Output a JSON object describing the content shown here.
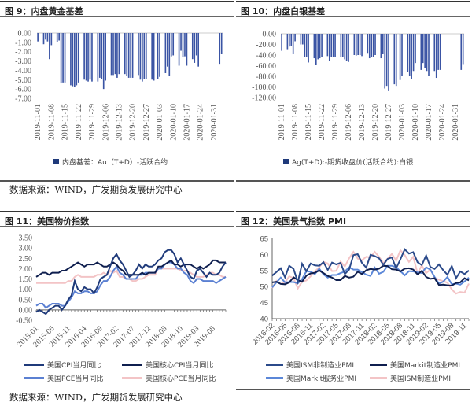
{
  "source_text": "数据来源：WIND，广发期货发展研究中心",
  "chart_data": [
    {
      "id": "c9",
      "type": "bar",
      "title": "图 9：内盘黄金基差",
      "legend": "内盘基差：Au（T+D）-活跃合约",
      "color": "#3A54A4",
      "ylim": [
        -7,
        0
      ],
      "yticks": [
        "0.00",
        "-1.00",
        "-2.00",
        "-3.00",
        "-4.00",
        "-5.00",
        "-6.00",
        "-7.00"
      ],
      "xticks": [
        "2019-11-01",
        "2019-11-08",
        "2019-11-15",
        "2019-11-22",
        "2019-11-29",
        "2019-12-06",
        "2019-12-13",
        "2019-12-20",
        "2019-12-27",
        "2020-01-03",
        "2020-01-10",
        "2020-01-17",
        "2020-01-24",
        "2020-01-31"
      ],
      "start": "2019-11-01",
      "days": 96,
      "values": [
        -0.9,
        -1.2,
        -0.7,
        -0.9,
        -2.8,
        -1.3,
        -1.0,
        -0.8,
        -5.4,
        -5.3,
        -5.3,
        -5.6,
        -5.7,
        -5.8,
        -5.6,
        -5.3,
        -5.0,
        -5.1,
        -5.2,
        -5.0,
        -5.2,
        -5.2,
        -4.8,
        -4.9,
        -6.0,
        -5.1,
        -4.5,
        -4.5,
        -4.4,
        -4.8,
        -4.4,
        -4.4,
        -4.6,
        -4.8,
        -4.8,
        -4.8,
        -4.5,
        -5.0,
        -5.2,
        -4.9,
        -4.9,
        -5.0,
        -5.1,
        -4.9,
        -4.7,
        -4.3,
        -3.6,
        -4.6,
        -2.5,
        -2.4,
        -3.5,
        -1.9,
        -2.6,
        -2.5,
        -3.5,
        -2.8,
        -3.2,
        -2.4,
        -3.6,
        -3.3,
        -2.2
      ]
    },
    {
      "id": "c10",
      "type": "bar",
      "title": "图 10：内盘白银基差",
      "legend": "Ag(T+D):-期货收盘价(活跃合约):白银",
      "color": "#3A54A4",
      "ylim": [
        -120,
        0
      ],
      "yticks": [
        "0.00",
        "-20.00",
        "-40.00",
        "-60.00",
        "-80.00",
        "-100.00",
        "-120.00"
      ],
      "xticks": [
        "2019-11-01",
        "2019-11-08",
        "2019-11-15",
        "2019-11-22",
        "2019-11-29",
        "2019-12-06",
        "2019-12-13",
        "2019-12-20",
        "2019-12-27",
        "2020-01-03",
        "2020-01-10",
        "2020-01-17",
        "2020-01-24",
        "2020-01-31"
      ],
      "start": "2019-11-01",
      "days": 96,
      "values": [
        -32,
        -29,
        -24,
        -23,
        -37,
        -14,
        -20,
        -20,
        -44,
        -44,
        -54,
        -46,
        -58,
        -48,
        -46,
        -44,
        -42,
        -51,
        -44,
        -44,
        -44,
        -44,
        -44,
        -48,
        -51,
        -53,
        -40,
        -41,
        -40,
        -40,
        -42,
        -36,
        -46,
        -44,
        -43,
        -40,
        -46,
        -38,
        -103,
        -98,
        -108,
        -95,
        -98,
        -87,
        -80,
        -72,
        -80,
        -85,
        -70,
        -55,
        -68,
        -55,
        -65,
        -70,
        -80,
        -70,
        -83,
        -68,
        -68,
        -68,
        -57
      ]
    },
    {
      "id": "c11",
      "type": "line",
      "title": "图 11：美国物价指数",
      "ylim": [
        -0.5,
        3.5
      ],
      "yticks": [
        "3.50",
        "3.00",
        "2.50",
        "2.00",
        "1.50",
        "1.00",
        "0.50",
        "0.00",
        "-0.50"
      ],
      "xticks": [
        "2015-01",
        "2015-06",
        "2015-11",
        "2016-04",
        "2016-09",
        "2017-02",
        "2017-07",
        "2017-12",
        "2018-05",
        "2018-10",
        "2019-03",
        "2019-08"
      ],
      "tick_every": 5,
      "series": [
        {
          "name": "美国CPI当月同比",
          "color": "#1F3A7A",
          "values": [
            -0.1,
            0.0,
            -0.1,
            -0.2,
            0.0,
            0.1,
            0.2,
            0.2,
            0.0,
            0.2,
            0.5,
            0.7,
            1.4,
            1.0,
            0.9,
            1.1,
            1.0,
            1.0,
            0.8,
            1.1,
            1.5,
            1.6,
            1.7,
            2.1,
            2.5,
            2.7,
            2.4,
            2.2,
            1.9,
            1.6,
            1.7,
            1.9,
            2.2,
            2.0,
            2.2,
            2.1,
            2.1,
            2.2,
            2.4,
            2.5,
            2.8,
            2.9,
            2.9,
            2.7,
            2.3,
            2.5,
            2.2,
            1.9,
            1.6,
            1.5,
            1.9,
            2.0,
            1.8,
            1.6,
            1.8,
            1.7,
            1.7,
            1.8,
            2.1,
            2.3
          ]
        },
        {
          "name": "美国核心CPI当月同比",
          "color": "#0F1F4F",
          "values": [
            1.6,
            1.7,
            1.8,
            1.8,
            1.7,
            1.8,
            1.8,
            1.8,
            1.9,
            1.9,
            2.0,
            2.1,
            2.2,
            2.3,
            2.2,
            2.1,
            2.2,
            2.2,
            2.2,
            2.3,
            2.2,
            2.1,
            2.1,
            2.2,
            2.3,
            2.2,
            2.0,
            1.9,
            1.7,
            1.7,
            1.7,
            1.7,
            1.7,
            1.8,
            1.7,
            1.8,
            1.8,
            1.8,
            2.1,
            2.1,
            2.2,
            2.3,
            2.4,
            2.2,
            2.2,
            2.1,
            2.2,
            2.2,
            2.2,
            2.1,
            2.0,
            2.1,
            2.0,
            2.1,
            2.2,
            2.4,
            2.4,
            2.3,
            2.3,
            2.3
          ]
        },
        {
          "name": "美国PCE当月同比",
          "color": "#5B80D2",
          "values": [
            0.2,
            0.3,
            0.3,
            0.1,
            0.2,
            0.3,
            0.3,
            0.3,
            0.2,
            0.2,
            0.4,
            0.6,
            0.9,
            0.8,
            0.8,
            0.9,
            0.9,
            0.8,
            0.8,
            0.9,
            1.2,
            1.4,
            1.4,
            1.6,
            1.9,
            2.1,
            1.8,
            1.7,
            1.5,
            1.5,
            1.5,
            1.5,
            1.7,
            1.7,
            1.8,
            1.8,
            1.8,
            1.8,
            2.0,
            2.0,
            2.2,
            2.3,
            2.3,
            2.2,
            2.0,
            2.0,
            1.8,
            1.7,
            1.4,
            1.3,
            1.5,
            1.5,
            1.4,
            1.4,
            1.4,
            1.4,
            1.3,
            1.4,
            1.5,
            1.6
          ]
        },
        {
          "name": "美国核心PCE当月同比",
          "color": "#F3C4C6",
          "values": [
            1.3,
            1.3,
            1.3,
            1.3,
            1.3,
            1.3,
            1.3,
            1.3,
            1.3,
            1.3,
            1.4,
            1.4,
            1.6,
            1.7,
            1.6,
            1.6,
            1.6,
            1.6,
            1.6,
            1.7,
            1.7,
            1.8,
            1.7,
            1.9,
            1.8,
            1.9,
            1.6,
            1.6,
            1.5,
            1.5,
            1.4,
            1.4,
            1.5,
            1.5,
            1.6,
            1.7,
            1.7,
            1.7,
            2.0,
            2.0,
            2.0,
            2.0,
            2.0,
            2.0,
            2.0,
            1.9,
            1.9,
            1.9,
            1.8,
            1.7,
            1.6,
            1.6,
            1.6,
            1.7,
            1.8,
            1.8,
            1.7,
            1.7,
            1.6,
            1.6
          ]
        }
      ]
    },
    {
      "id": "c12",
      "type": "line",
      "title": "图 12：美国景气指数 PMI",
      "ylim": [
        40,
        65
      ],
      "yticks": [
        "65",
        "60",
        "55",
        "50",
        "45",
        "40"
      ],
      "xticks": [
        "2016-02",
        "2016-05",
        "2016-08",
        "2016-11",
        "2017-02",
        "2017-05",
        "2017-08",
        "2017-11",
        "2018-02",
        "2018-05",
        "2018-08",
        "2018-11",
        "2019-02",
        "2019-05",
        "2019-08",
        "2019-11"
      ],
      "tick_every": 3,
      "series": [
        {
          "name": "美国ISM非制造业PMI",
          "color": "#2B4A8A",
          "values": [
            53.4,
            54.5,
            55.7,
            52.9,
            56.5,
            55.5,
            51.4,
            57.1,
            54.8,
            57.2,
            56.6,
            56.5,
            57.6,
            55.2,
            57.5,
            56.9,
            57.4,
            53.9,
            55.3,
            59.8,
            60.1,
            57.4,
            55.9,
            59.9,
            59.5,
            58.8,
            56.8,
            58.6,
            59.1,
            55.7,
            58.5,
            61.6,
            60.3,
            60.7,
            57.6,
            56.7,
            59.7,
            56.1,
            55.5,
            56.9,
            55.1,
            53.7,
            56.4,
            52.6,
            54.7,
            53.9,
            55.0
          ]
        },
        {
          "name": "美国Markit制造业PMI",
          "color": "#0F1F4F",
          "values": [
            51.3,
            51.5,
            50.8,
            50.7,
            51.3,
            52.9,
            52.0,
            51.5,
            53.4,
            54.1,
            54.3,
            55.0,
            54.2,
            53.3,
            52.8,
            52.0,
            52.0,
            53.3,
            52.8,
            53.1,
            54.6,
            53.9,
            55.1,
            55.5,
            55.3,
            55.6,
            56.5,
            56.4,
            55.4,
            55.3,
            54.7,
            55.6,
            55.7,
            55.3,
            53.8,
            54.9,
            53.0,
            52.4,
            52.6,
            50.5,
            50.6,
            50.4,
            50.3,
            51.1,
            51.3,
            52.6,
            51.9
          ]
        },
        {
          "name": "美国Markit服务业PMI",
          "color": "#5B87D8",
          "values": [
            49.7,
            51.3,
            52.8,
            51.3,
            51.4,
            51.4,
            51.0,
            52.3,
            54.8,
            54.6,
            53.9,
            55.6,
            53.8,
            52.8,
            53.6,
            53.6,
            54.2,
            54.7,
            56.0,
            55.3,
            55.3,
            54.5,
            53.7,
            53.3,
            55.9,
            54.0,
            54.6,
            56.5,
            56.5,
            56.0,
            54.8,
            53.5,
            54.8,
            54.7,
            54.4,
            54.2,
            56.0,
            55.3,
            53.0,
            50.9,
            51.5,
            53.0,
            50.7,
            50.9,
            50.6,
            51.6,
            52.8
          ]
        },
        {
          "name": "美国ISM制造业PMI",
          "color": "#F3C4C6",
          "values": [
            49.5,
            51.8,
            50.8,
            51.3,
            53.2,
            52.6,
            49.4,
            51.5,
            51.9,
            53.2,
            54.7,
            56.0,
            57.7,
            57.2,
            54.8,
            54.9,
            57.8,
            56.3,
            58.8,
            60.8,
            58.7,
            58.2,
            59.3,
            59.1,
            60.8,
            59.3,
            57.3,
            58.7,
            60.2,
            58.1,
            61.3,
            59.8,
            57.7,
            59.3,
            54.1,
            56.6,
            54.2,
            55.3,
            52.8,
            52.1,
            51.7,
            51.2,
            49.1,
            47.8,
            48.3,
            48.1,
            50.9
          ]
        }
      ]
    }
  ]
}
